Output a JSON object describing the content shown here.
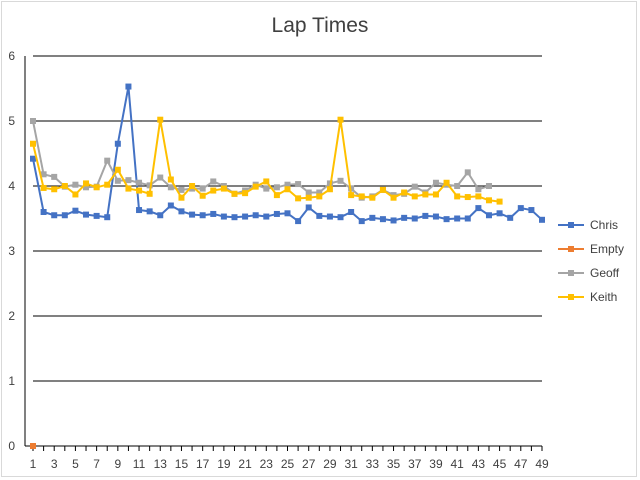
{
  "chart_data": {
    "type": "line",
    "title": "Lap Times",
    "xlabel": "",
    "ylabel": "",
    "ylim": [
      0,
      6
    ],
    "yticks": [
      0,
      1,
      2,
      3,
      4,
      5,
      6
    ],
    "xlim": [
      1,
      49
    ],
    "xtick_labels": [
      1,
      3,
      5,
      7,
      9,
      11,
      13,
      15,
      17,
      19,
      21,
      23,
      25,
      27,
      29,
      31,
      33,
      35,
      37,
      39,
      41,
      43,
      45,
      47,
      49
    ],
    "grid": "horizontal",
    "legend": "right",
    "series": [
      {
        "name": "Chris",
        "color": "#4472c4",
        "marker": "square",
        "values": [
          4.42,
          3.6,
          3.55,
          3.55,
          3.62,
          3.56,
          3.54,
          3.52,
          4.65,
          5.53,
          3.63,
          3.61,
          3.55,
          3.7,
          3.61,
          3.56,
          3.55,
          3.57,
          3.53,
          3.52,
          3.53,
          3.55,
          3.53,
          3.57,
          3.58,
          3.46,
          3.67,
          3.54,
          3.53,
          3.52,
          3.6,
          3.46,
          3.51,
          3.49,
          3.47,
          3.51,
          3.5,
          3.54,
          3.53,
          3.49,
          3.5,
          3.5,
          3.66,
          3.55,
          3.58,
          3.51,
          3.66,
          3.63,
          3.48
        ]
      },
      {
        "name": "Empty",
        "color": "#ed7d31",
        "marker": "square",
        "values": [
          0
        ]
      },
      {
        "name": "Geoff",
        "color": "#a5a5a5",
        "marker": "square",
        "values": [
          5.0,
          4.18,
          4.14,
          3.99,
          4.02,
          3.98,
          3.99,
          4.39,
          4.08,
          4.09,
          4.05,
          4.01,
          4.13,
          3.98,
          3.94,
          3.96,
          3.96,
          4.07,
          4.0,
          3.88,
          3.93,
          4.02,
          3.96,
          3.98,
          4.02,
          4.03,
          3.9,
          3.9,
          4.04,
          4.08,
          3.96,
          3.82,
          3.84,
          3.94,
          3.86,
          3.88,
          3.99,
          3.9,
          4.05,
          4.02,
          4.0,
          4.21,
          3.95,
          4.0
        ]
      },
      {
        "name": "Keith",
        "color": "#ffc000",
        "marker": "square",
        "values": [
          4.65,
          3.97,
          3.95,
          4.0,
          3.87,
          4.04,
          3.98,
          4.02,
          4.25,
          3.96,
          3.93,
          3.88,
          5.02,
          4.1,
          3.82,
          4.0,
          3.85,
          3.93,
          3.96,
          3.88,
          3.89,
          3.99,
          4.07,
          3.86,
          3.95,
          3.81,
          3.82,
          3.84,
          3.95,
          5.02,
          3.86,
          3.84,
          3.82,
          3.94,
          3.82,
          3.9,
          3.84,
          3.87,
          3.87,
          4.05,
          3.84,
          3.83,
          3.84,
          3.78,
          3.76
        ]
      }
    ]
  }
}
